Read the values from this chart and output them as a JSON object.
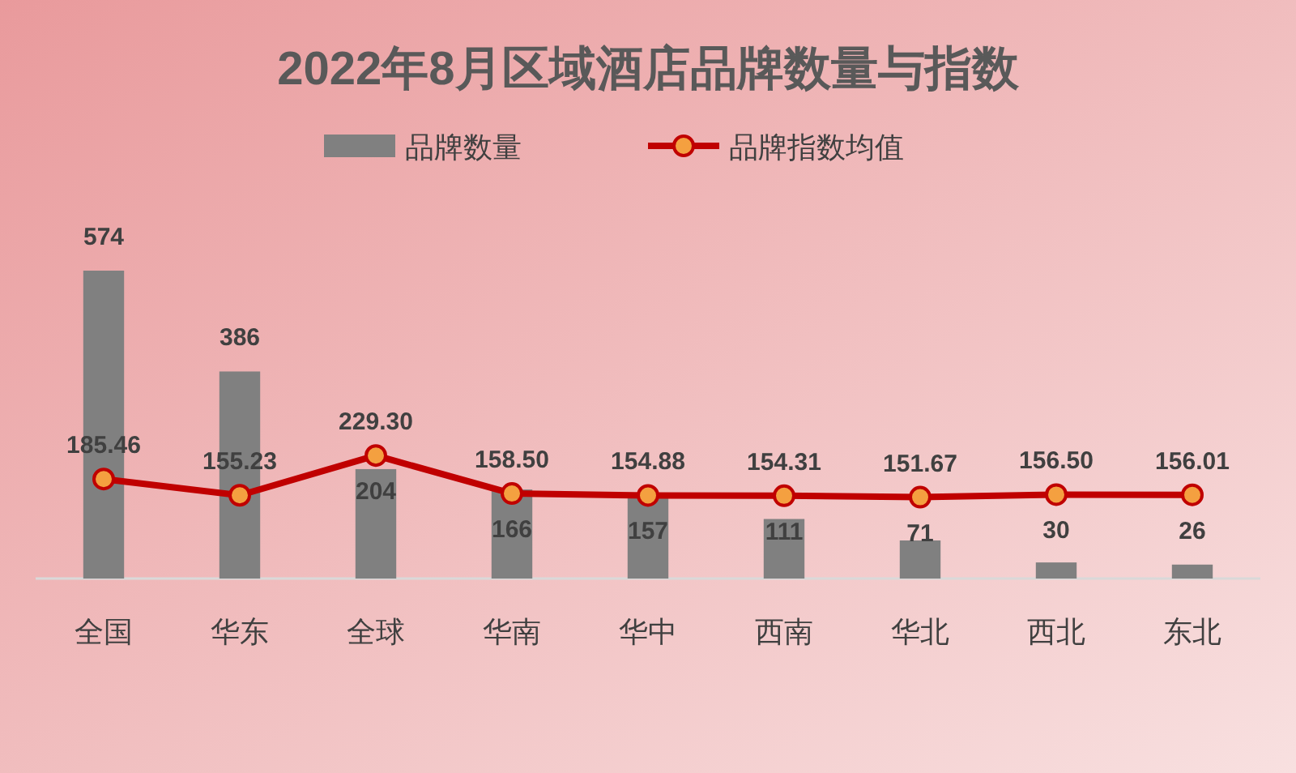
{
  "chart_data": {
    "type": "bar",
    "title": "2022年8月区域酒店品牌数量与指数",
    "categories": [
      "全国",
      "华东",
      "全球",
      "华南",
      "华中",
      "西南",
      "华北",
      "西北",
      "东北"
    ],
    "series": [
      {
        "name": "品牌数量",
        "color": "#808080",
        "values": [
          574,
          386,
          204,
          166,
          157,
          111,
          71,
          30,
          26
        ],
        "value_labels": [
          "574",
          "386",
          "204",
          "166",
          "157",
          "111",
          "71",
          "30",
          "26"
        ]
      },
      {
        "name": "品牌指数均值",
        "type": "line",
        "color": "#c00000",
        "values": [
          185.46,
          155.23,
          229.3,
          158.5,
          154.88,
          154.31,
          151.67,
          156.5,
          156.01
        ],
        "value_labels": [
          "185.46",
          "155.23",
          "229.30",
          "158.50",
          "154.88",
          "154.31",
          "151.67",
          "156.50",
          "156.01"
        ]
      }
    ],
    "legend": "top",
    "marker": "circle",
    "tick_labels": "x"
  }
}
